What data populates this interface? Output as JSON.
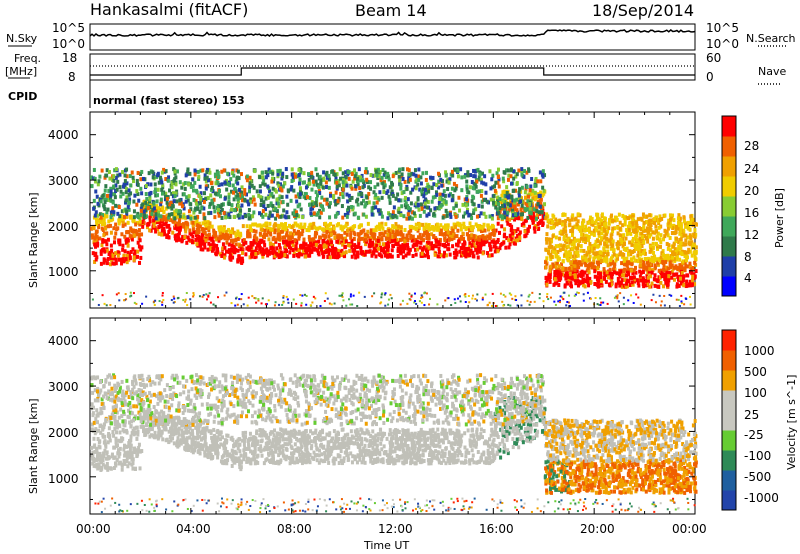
{
  "header": {
    "station": "Hankasalmi (fitACF)",
    "beam": "Beam 14",
    "date": "18/Sep/2014"
  },
  "strip_labels": {
    "nsky": "N.Sky",
    "nsearch": "N.Search",
    "freq_line1": "Freq.",
    "freq_line2": "[MHz]",
    "nave": "Nave",
    "cpid": "CPID"
  },
  "strip_ticks": {
    "nsky_top": "10^5",
    "nsky_bottom": "10^0",
    "nsearch_top": "10^5",
    "nsearch_bottom": "10^0",
    "freq_top": "18",
    "freq_bottom": "8",
    "nave_top": "60",
    "nave_bottom": "0"
  },
  "cpid_text": "normal (fast stereo) 153",
  "x_axis": {
    "label": "Time UT",
    "ticks": [
      "00:00",
      "04:00",
      "08:00",
      "12:00",
      "16:00",
      "20:00",
      "00:00"
    ]
  },
  "power_panel": {
    "ylabel": "Slant Range [km]",
    "yticks": [
      "4000",
      "3000",
      "2000",
      "1000"
    ],
    "colorbar_label": "Power [dB]",
    "colorbar_ticks": [
      "28",
      "24",
      "20",
      "16",
      "12",
      "8",
      "4"
    ],
    "colors": [
      "#0000ff",
      "#1f3fa8",
      "#2f7a4a",
      "#3fa85a",
      "#88cc33",
      "#f0cc00",
      "#f0a000",
      "#f06000",
      "#ff0000"
    ]
  },
  "velocity_panel": {
    "ylabel": "Slant Range [km]",
    "yticks": [
      "4000",
      "3000",
      "2000",
      "1000"
    ],
    "colorbar_label": "Velocity [m s^-1]",
    "colorbar_ticks": [
      "1000",
      "500",
      "100",
      "25",
      "-25",
      "-100",
      "-500",
      "-1000"
    ],
    "colors": [
      "#2244aa",
      "#1f5f9f",
      "#2e8a57",
      "#66cc33",
      "#c8c8c0",
      "#c8c8c0",
      "#f0a000",
      "#f06000",
      "#ff2200"
    ],
    "ground_scatter_color": "#c0c0b8"
  },
  "chart_data": {
    "type": "heatmap",
    "title": "Hankasalmi (fitACF)",
    "x_range_hours": [
      0,
      24
    ],
    "y_range_km": [
      180,
      4500
    ],
    "power_bands": [
      {
        "t0": 0,
        "t1": 2,
        "r0": 1100,
        "r1": 2000,
        "level": "high"
      },
      {
        "t0": 2,
        "t1": 6,
        "r0": 1100,
        "r1": 2200,
        "level": "high"
      },
      {
        "t0": 6,
        "t1": 18,
        "r0": 1200,
        "r1": 2000,
        "level": "medium-high"
      },
      {
        "t0": 16,
        "t1": 18,
        "r0": 1500,
        "r1": 2700,
        "level": "high"
      },
      {
        "t0": 18,
        "t1": 24,
        "r0": 600,
        "r1": 1200,
        "level": "high"
      },
      {
        "t0": 18,
        "t1": 24,
        "r0": 1200,
        "r1": 2200,
        "level": "medium"
      },
      {
        "t0": 0,
        "t1": 18,
        "r0": 2200,
        "r1": 3100,
        "level": "low-medium"
      }
    ]
  }
}
